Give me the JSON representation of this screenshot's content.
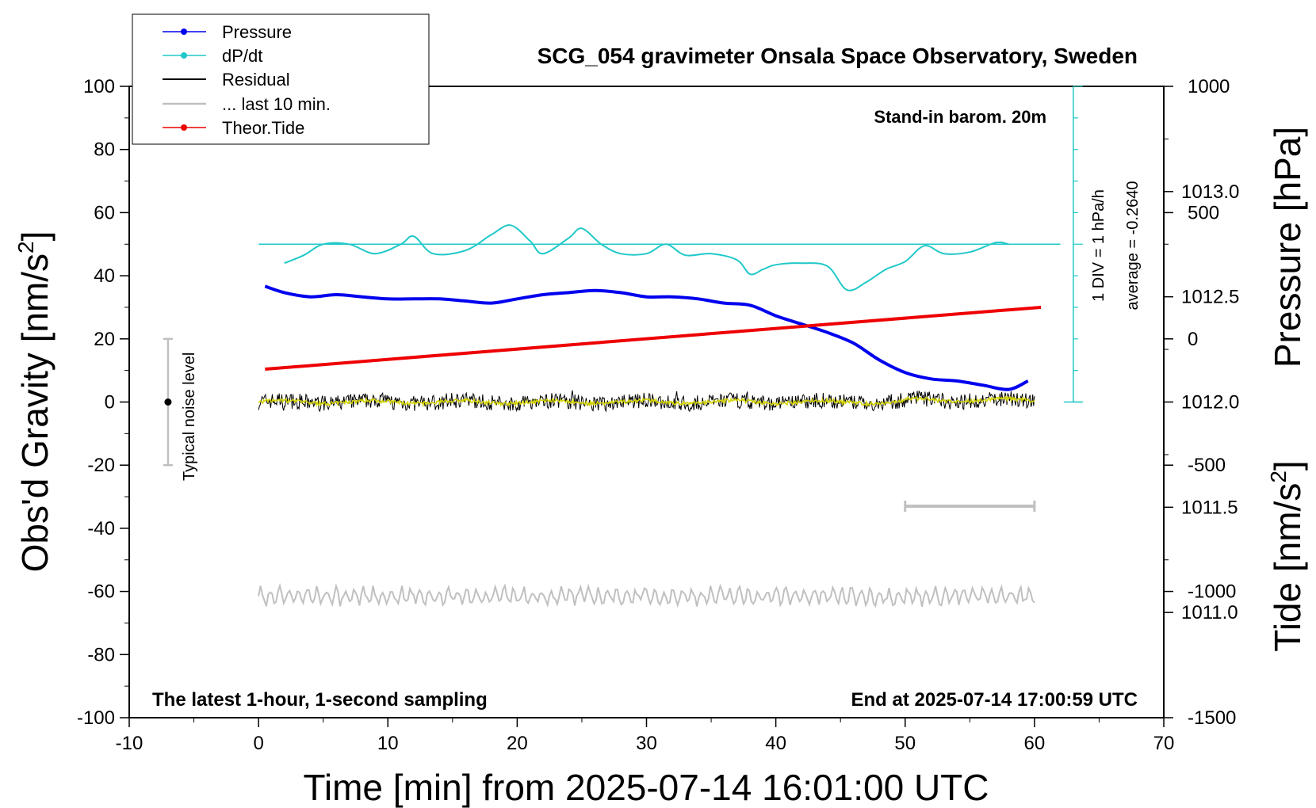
{
  "chart_data": {
    "type": "line",
    "title": "SCG_054 gravimeter Onsala Space Observatory, Sweden",
    "xlabel": "Time [min] from 2025-07-14 16:01:00 UTC",
    "ylabel_left": "Obs'd Gravity [nm/s",
    "ylabel_left_sup": "2",
    "ylabel_left_end": "]",
    "ylabel_pressure": "Pressure [hPa]",
    "ylabel_tide": "Tide [nm/s",
    "ylabel_tide_sup": "2",
    "ylabel_tide_end": "]",
    "xlim": [
      -10,
      70
    ],
    "ylim": [
      -100,
      100
    ],
    "x_ticks": [
      -10,
      0,
      10,
      20,
      30,
      40,
      50,
      60,
      70
    ],
    "y_ticks": [
      100,
      80,
      60,
      40,
      20,
      0,
      -20,
      -40,
      -60,
      -80,
      -100
    ],
    "pressure_ylim": [
      1010.5,
      1013.5
    ],
    "pressure_ticks": [
      "1013.0",
      "1012.5",
      "1012.0",
      "1011.5",
      "1011.0"
    ],
    "tide_ylim": [
      -1500,
      1000
    ],
    "tide_ticks": [
      "1000",
      "500",
      "0",
      "-500",
      "-1000",
      "-1500"
    ],
    "legend": [
      "Pressure",
      "dP/dt",
      "Residual",
      "... last 10 min.",
      "Theor.Tide"
    ],
    "annotations": {
      "stand_in": "Stand-in barom. 20m",
      "div_note": "1 DIV = 1 hPa/h",
      "average_note": "average = -0.2640",
      "noise_label": "Typical noise level",
      "bottom_left": "The latest 1-hour, 1-second sampling",
      "bottom_right": "End at 2025-07-14 17:00:59 UTC"
    },
    "noise_bar": {
      "x": -7,
      "center": 0,
      "half_range": 20
    },
    "last10_bar": {
      "x_start": 50,
      "x_end": 60,
      "y": -33
    },
    "series": [
      {
        "name": "Pressure",
        "color": "#0000ee",
        "axis": "pressure",
        "x": [
          0.5,
          2,
          4,
          6,
          8,
          10,
          12,
          14,
          16,
          18,
          20,
          22,
          24,
          26,
          28,
          30,
          32,
          34,
          36,
          38,
          40,
          42,
          44,
          46,
          48,
          50,
          52,
          54,
          56,
          58,
          59.5
        ],
        "y": [
          1012.55,
          1012.52,
          1012.5,
          1012.51,
          1012.5,
          1012.49,
          1012.49,
          1012.49,
          1012.48,
          1012.47,
          1012.49,
          1012.51,
          1012.52,
          1012.53,
          1012.52,
          1012.5,
          1012.5,
          1012.49,
          1012.47,
          1012.46,
          1012.41,
          1012.37,
          1012.33,
          1012.28,
          1012.2,
          1012.14,
          1012.11,
          1012.1,
          1012.08,
          1012.06,
          1012.1
        ]
      },
      {
        "name": "dP/dt",
        "color": "#20c8c8",
        "axis": "gravity",
        "baseline": 50,
        "x": [
          2,
          3.5,
          5,
          7,
          9,
          11,
          12,
          13.5,
          16,
          18,
          19.5,
          21,
          22,
          24,
          25,
          26.5,
          28,
          30,
          31.5,
          33,
          35,
          37,
          38,
          39,
          40,
          42,
          44,
          45.5,
          47,
          48.5,
          50,
          51.5,
          53,
          55,
          57,
          58
        ],
        "y": [
          44,
          46.5,
          50,
          50,
          47,
          50,
          52.5,
          47,
          48,
          53,
          56,
          51,
          47,
          52,
          55,
          50,
          47,
          47,
          50,
          46.5,
          47,
          45,
          40.5,
          42,
          43.5,
          44,
          43,
          35.5,
          38,
          42,
          44.5,
          49.5,
          47,
          47.5,
          50.5,
          50
        ]
      },
      {
        "name": "Theor.Tide",
        "color": "#ee0000",
        "axis": "tide",
        "x": [
          0.5,
          60.5
        ],
        "y": [
          -120,
          125
        ]
      }
    ]
  }
}
